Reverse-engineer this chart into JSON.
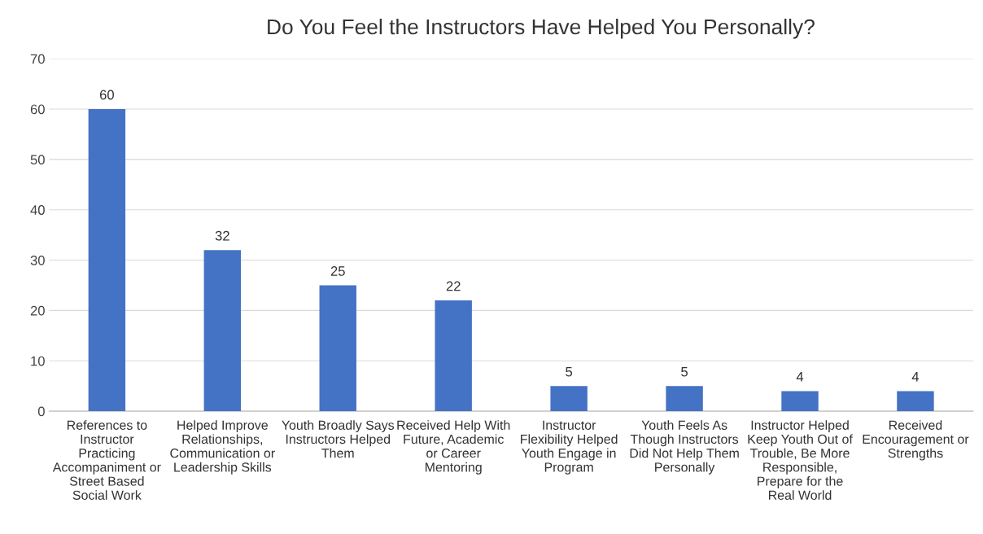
{
  "chart_data": {
    "type": "bar",
    "title": "Do You Feel the Instructors Have Helped You Personally?",
    "categories": [
      "References to Instructor Practicing Accompaniment or Street Based Social Work",
      "Helped Improve Relationships, Communication or Leadership Skills",
      "Youth Broadly Says Instructors Helped Them",
      "Received Help With Future, Academic or Career Mentoring",
      "Instructor Flexibility Helped Youth Engage in Program",
      "Youth Feels As Though Instructors Did Not Help Them Personally",
      "Instructor Helped Keep Youth Out of Trouble, Be More Responsible, Prepare for the Real World",
      "Received Encouragement or Strengths"
    ],
    "values": [
      60,
      32,
      25,
      22,
      5,
      5,
      4,
      4
    ],
    "color": "#4472c4",
    "ylim": [
      0,
      70
    ],
    "yticks": [
      0,
      10,
      20,
      30,
      40,
      50,
      60,
      70
    ],
    "grid": "y",
    "data_labels": true
  }
}
